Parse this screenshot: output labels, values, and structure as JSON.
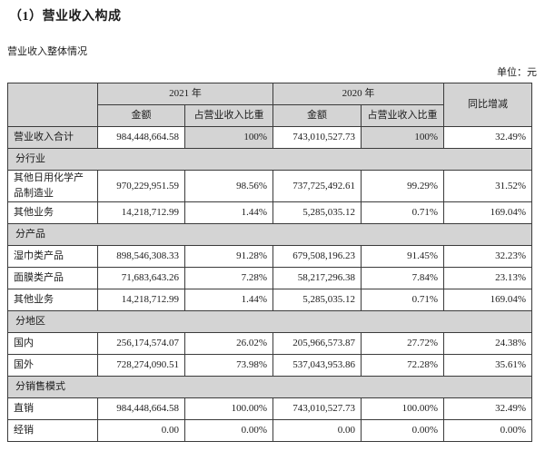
{
  "page": {
    "title": "（1）营业收入构成",
    "subtitle": "营业收入整体情况",
    "unit_label": "单位：元"
  },
  "colors": {
    "header_bg": "#d4d4d4",
    "section_bg": "#d4d4d4",
    "border": "#3b3b3b"
  },
  "table": {
    "header": {
      "year_2021": "2021 年",
      "year_2020": "2020 年",
      "amount": "金额",
      "proportion": "占营业收入比重",
      "yoy": "同比增减"
    },
    "rows": [
      {
        "type": "data",
        "label": "营业收入合计",
        "a2021": "984,448,664.58",
        "p2021": "100%",
        "a2020": "743,010,527.73",
        "p2020": "100%",
        "yoy": "32.49%"
      },
      {
        "type": "section",
        "label": "分行业"
      },
      {
        "type": "data",
        "label": "其他日用化学产品制造业",
        "a2021": "970,229,951.59",
        "p2021": "98.56%",
        "a2020": "737,725,492.61",
        "p2020": "99.29%",
        "yoy": "31.52%"
      },
      {
        "type": "data",
        "label": "其他业务",
        "a2021": "14,218,712.99",
        "p2021": "1.44%",
        "a2020": "5,285,035.12",
        "p2020": "0.71%",
        "yoy": "169.04%"
      },
      {
        "type": "section",
        "label": "分产品"
      },
      {
        "type": "data",
        "label": "湿巾类产品",
        "a2021": "898,546,308.33",
        "p2021": "91.28%",
        "a2020": "679,508,196.23",
        "p2020": "91.45%",
        "yoy": "32.23%"
      },
      {
        "type": "data",
        "label": "面膜类产品",
        "a2021": "71,683,643.26",
        "p2021": "7.28%",
        "a2020": "58,217,296.38",
        "p2020": "7.84%",
        "yoy": "23.13%"
      },
      {
        "type": "data",
        "label": "其他业务",
        "a2021": "14,218,712.99",
        "p2021": "1.44%",
        "a2020": "5,285,035.12",
        "p2020": "0.71%",
        "yoy": "169.04%"
      },
      {
        "type": "section",
        "label": "分地区"
      },
      {
        "type": "data",
        "label": "国内",
        "a2021": "256,174,574.07",
        "p2021": "26.02%",
        "a2020": "205,966,573.87",
        "p2020": "27.72%",
        "yoy": "24.38%"
      },
      {
        "type": "data",
        "label": "国外",
        "a2021": "728,274,090.51",
        "p2021": "73.98%",
        "a2020": "537,043,953.86",
        "p2020": "72.28%",
        "yoy": "35.61%"
      },
      {
        "type": "section",
        "label": "分销售模式"
      },
      {
        "type": "data",
        "label": "直销",
        "a2021": "984,448,664.58",
        "p2021": "100.00%",
        "a2020": "743,010,527.73",
        "p2020": "100.00%",
        "yoy": "32.49%"
      },
      {
        "type": "data",
        "label": "经销",
        "a2021": "0.00",
        "p2021": "0.00%",
        "a2020": "0.00",
        "p2020": "0.00%",
        "yoy": "0.00%"
      }
    ]
  }
}
